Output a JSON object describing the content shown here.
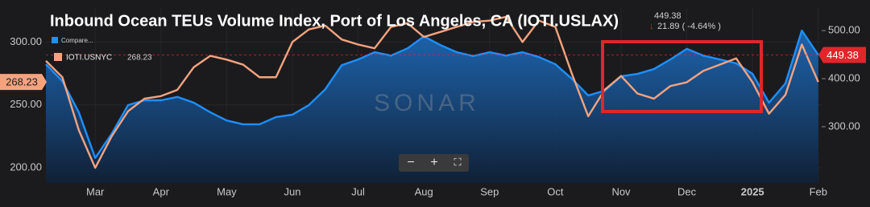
{
  "chart_data": {
    "type": "line",
    "title": "Inbound Ocean TEUs Volume Index, Port of Los Angeles, CA (IOTI.USLAX)",
    "change": "21.89 ( -4.64% )",
    "compare_label": "Compare...",
    "watermark": "SONAR",
    "categories": [
      null,
      null,
      null,
      "Mar",
      null,
      null,
      null,
      "Apr",
      null,
      null,
      null,
      "May",
      null,
      null,
      null,
      "Jun",
      null,
      null,
      null,
      "Jul",
      null,
      null,
      null,
      "Aug",
      null,
      null,
      null,
      "Sep",
      null,
      null,
      null,
      "Oct",
      null,
      null,
      null,
      "Nov",
      null,
      null,
      null,
      "Dec",
      null,
      null,
      null,
      "2025",
      null,
      null,
      null,
      "Feb"
    ],
    "series": [
      {
        "color": "#1e8fff",
        "axis": "y2",
        "values": [
          430,
          395,
          330,
          235,
          285,
          345,
          355,
          355,
          362,
          350,
          330,
          313,
          305,
          305,
          320,
          325,
          345,
          378,
          428,
          440,
          455,
          448,
          463,
          488,
          470,
          455,
          447,
          455,
          448,
          455,
          445,
          430,
          400,
          365,
          375,
          405,
          410,
          420,
          440,
          462,
          448,
          440,
          432,
          410,
          350,
          390,
          500,
          449.38
        ]
      },
      {
        "name": "IOTI.USNYC",
        "color": "#f5a37f",
        "values": [
          285,
          272,
          230,
          200,
          225,
          245,
          255,
          257,
          262,
          280,
          289,
          286,
          282,
          272,
          272,
          300,
          310,
          313,
          302,
          298,
          295,
          312,
          315,
          304,
          308,
          312,
          316,
          317,
          320,
          300,
          317,
          312,
          275,
          241,
          262,
          273,
          259,
          255,
          265,
          268,
          277,
          282,
          287,
          268,
          243,
          258,
          298,
          268.23
        ]
      }
    ],
    "ylim": [
      188,
      327
    ],
    "yticks": [
      {
        "value": 200,
        "label": "200.00"
      },
      {
        "value": 250,
        "label": "250.00"
      },
      {
        "value": 300,
        "label": "300.00"
      }
    ],
    "y2lim": [
      183,
      547
    ],
    "y2ticks": [
      {
        "value": 300,
        "label": "300.00"
      },
      {
        "value": 400,
        "label": "400.00"
      },
      {
        "value": 500,
        "label": "500.00"
      }
    ],
    "grid": true
  }
}
